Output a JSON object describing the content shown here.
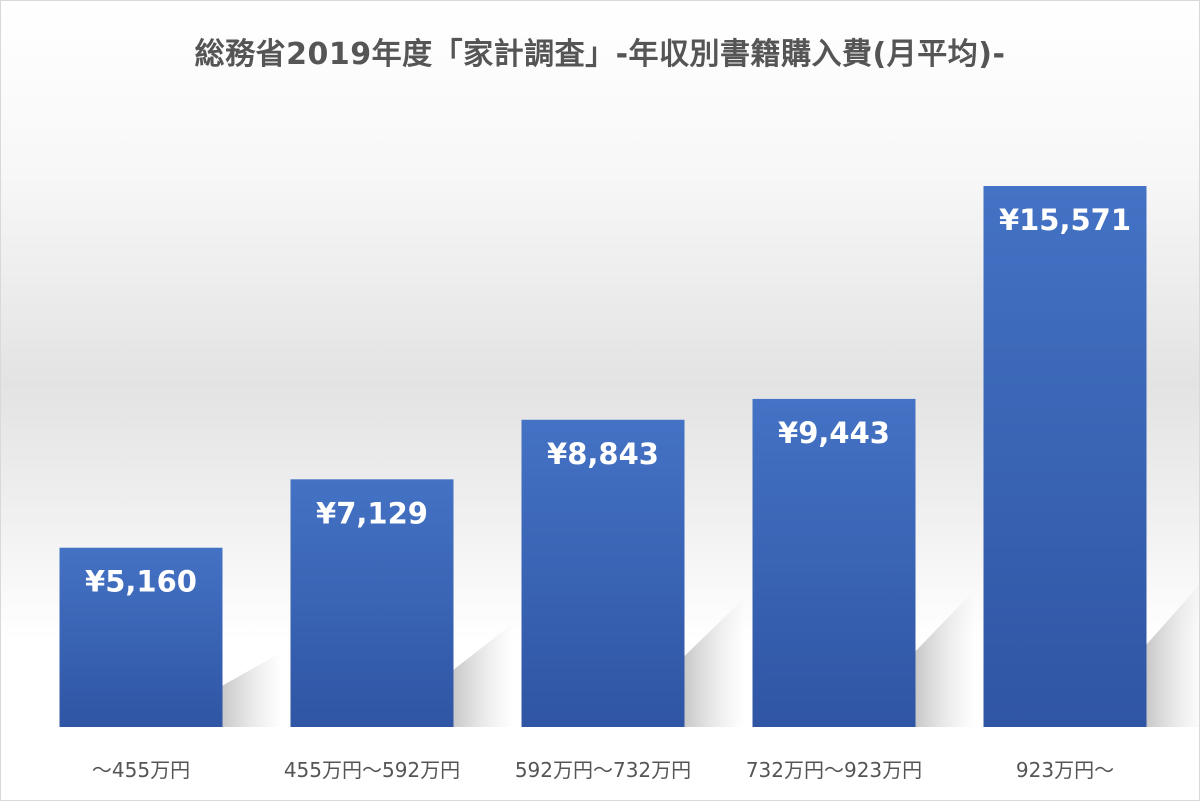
{
  "chart_data": {
    "type": "bar",
    "title": "総務省2019年度「家計調査」-年収別書籍購入費(月平均)-",
    "xlabel": "",
    "ylabel": "",
    "categories": [
      "～455万円",
      "455万円～592万円",
      "592万円～732万円",
      "732万円～923万円",
      "923万円～"
    ],
    "values": [
      5160,
      7129,
      8843,
      9443,
      15571
    ],
    "data_labels": [
      "¥5,160",
      "¥7,129",
      "¥8,843",
      "¥9,443",
      "¥15,571"
    ],
    "ylim": [
      0,
      16000
    ],
    "grid": false,
    "legend": "none",
    "colors": {
      "bar_top": "#4472c4",
      "bar_bottom": "#2f55a4",
      "data_label": "#ffffff",
      "category_label": "#555555",
      "title": "#555555"
    }
  }
}
